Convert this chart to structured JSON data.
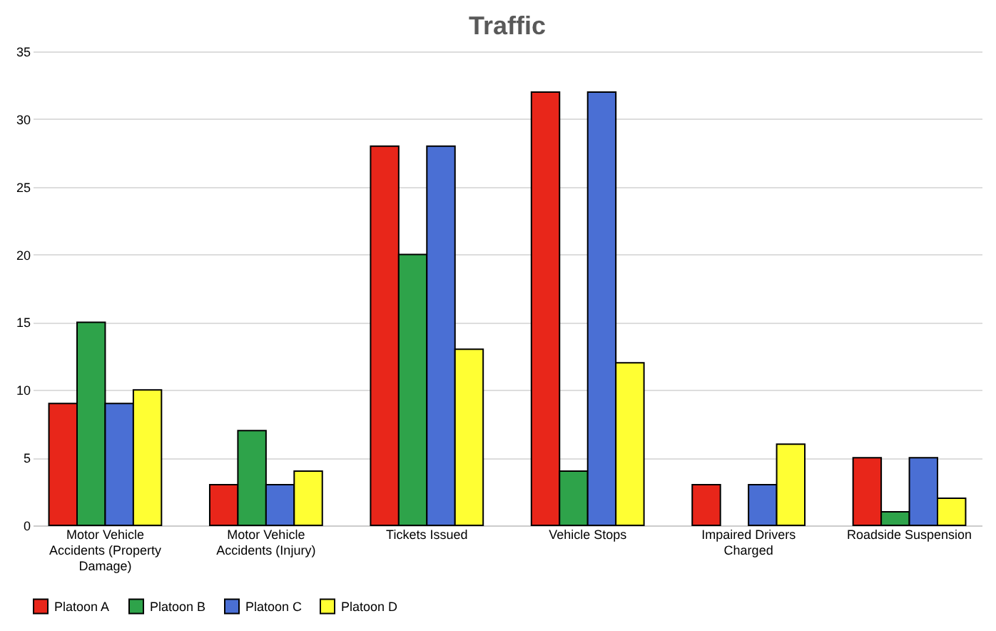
{
  "chart_data": {
    "type": "bar",
    "title": "Traffic",
    "categories": [
      "Motor Vehicle Accidents (Property Damage)",
      "Motor Vehicle Accidents (Injury)",
      "Tickets Issued",
      "Vehicle Stops",
      "Impaired Drivers Charged",
      "Roadside Suspension"
    ],
    "series": [
      {
        "name": "Platoon A",
        "color": "#e8261a",
        "values": [
          9,
          3,
          28,
          32,
          3,
          5
        ]
      },
      {
        "name": "Platoon B",
        "color": "#2ea34a",
        "values": [
          15,
          7,
          20,
          4,
          0,
          1
        ]
      },
      {
        "name": "Platoon C",
        "color": "#4a6fd4",
        "values": [
          9,
          3,
          28,
          32,
          3,
          5
        ]
      },
      {
        "name": "Platoon D",
        "color": "#ffff33",
        "values": [
          10,
          4,
          13,
          12,
          6,
          2
        ]
      }
    ],
    "ylim": [
      0,
      35
    ],
    "yticks": [
      0,
      5,
      10,
      15,
      20,
      25,
      30,
      35
    ],
    "grid": "y",
    "legend": "bottom"
  }
}
